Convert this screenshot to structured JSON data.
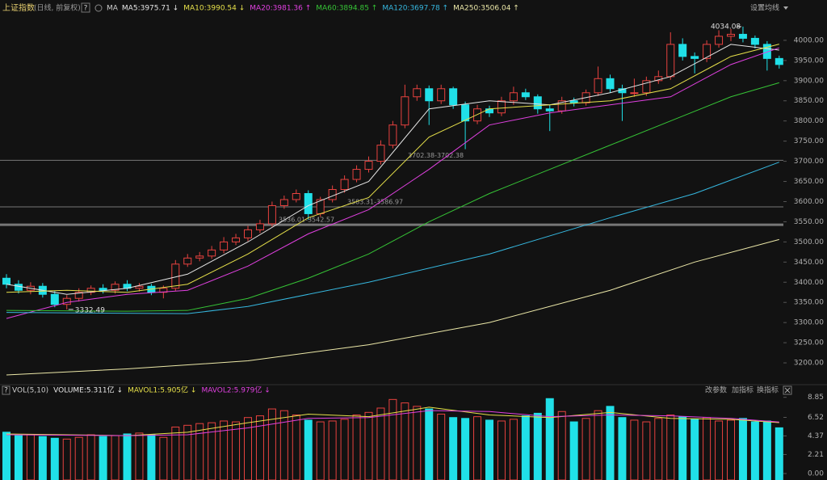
{
  "header": {
    "title": "上证指数",
    "subtitle": "(日线, 前复权)",
    "help": "?",
    "ma_label": "MA",
    "settings": "设置均线"
  },
  "chart_data": [
    {
      "type": "candlestick",
      "up_color": "#e8423f",
      "down_color": "#20e0e8",
      "open": [
        3410,
        3395,
        3380,
        3390,
        3370,
        3345,
        3360,
        3375,
        3385,
        3380,
        3395,
        3385,
        3390,
        3375,
        3385,
        3445,
        3460,
        3465,
        3480,
        3500,
        3510,
        3530,
        3545,
        3590,
        3605,
        3620,
        3570,
        3605,
        3630,
        3655,
        3680,
        3700,
        3740,
        3790,
        3860,
        3880,
        3850,
        3880,
        3840,
        3800,
        3830,
        3820,
        3850,
        3870,
        3860,
        3830,
        3825,
        3850,
        3845,
        3870,
        3905,
        3880,
        3870,
        3870,
        3900,
        3910,
        3990,
        3960,
        3955,
        3990,
        4010,
        4015,
        4005,
        3990,
        3955
      ],
      "close": [
        3395,
        3380,
        3390,
        3370,
        3345,
        3360,
        3375,
        3385,
        3380,
        3395,
        3385,
        3390,
        3375,
        3385,
        3445,
        3460,
        3465,
        3480,
        3500,
        3510,
        3530,
        3545,
        3590,
        3605,
        3620,
        3570,
        3605,
        3630,
        3655,
        3680,
        3700,
        3740,
        3790,
        3860,
        3880,
        3850,
        3880,
        3840,
        3800,
        3830,
        3820,
        3850,
        3870,
        3860,
        3830,
        3825,
        3850,
        3845,
        3870,
        3905,
        3880,
        3870,
        3870,
        3900,
        3910,
        3990,
        3960,
        3955,
        3990,
        4010,
        4015,
        4005,
        3990,
        3955,
        3940
      ],
      "high": [
        3420,
        3405,
        3400,
        3398,
        3378,
        3368,
        3385,
        3392,
        3395,
        3402,
        3405,
        3398,
        3396,
        3392,
        3455,
        3470,
        3475,
        3490,
        3512,
        3520,
        3540,
        3555,
        3600,
        3615,
        3630,
        3628,
        3612,
        3640,
        3665,
        3690,
        3712,
        3752,
        3800,
        3890,
        3890,
        3888,
        3890,
        3885,
        3848,
        3840,
        3838,
        3860,
        3885,
        3880,
        3866,
        3840,
        3860,
        3858,
        3878,
        3935,
        3915,
        3890,
        3905,
        3910,
        3925,
        4020,
        4005,
        3970,
        4000,
        4025,
        4028,
        4034.08,
        4012,
        3998,
        3962
      ],
      "low": [
        3385,
        3372,
        3370,
        3362,
        3338,
        3332.49,
        3352,
        3368,
        3372,
        3372,
        3378,
        3377,
        3368,
        3360,
        3378,
        3438,
        3452,
        3458,
        3472,
        3492,
        3502,
        3522,
        3538,
        3582,
        3598,
        3555,
        3562,
        3598,
        3622,
        3648,
        3672,
        3692,
        3732,
        3782,
        3850,
        3790,
        3842,
        3830,
        3730,
        3792,
        3810,
        3812,
        3840,
        3852,
        3818,
        3775,
        3818,
        3836,
        3838,
        3862,
        3870,
        3800,
        3860,
        3862,
        3892,
        3902,
        3950,
        3918,
        3946,
        3982,
        3998,
        3995,
        3980,
        3925,
        3930
      ],
      "ylim": [
        3158,
        4084
      ],
      "yticks": [
        {
          "value": 3200,
          "label": "3200.00"
        },
        {
          "value": 3250,
          "label": "3250.00"
        },
        {
          "value": 3300,
          "label": "3300.00"
        },
        {
          "value": 3350,
          "label": "3350.00"
        },
        {
          "value": 3400,
          "label": "3400.00"
        },
        {
          "value": 3450,
          "label": "3450.00"
        },
        {
          "value": 3500,
          "label": "3500.00"
        },
        {
          "value": 3550,
          "label": "3550.00"
        },
        {
          "value": 3600,
          "label": "3600.00"
        },
        {
          "value": 3650,
          "label": "3650.00"
        },
        {
          "value": 3700,
          "label": "3700.00"
        },
        {
          "value": 3750,
          "label": "3750.00"
        },
        {
          "value": 3800,
          "label": "3800.00"
        },
        {
          "value": 3850,
          "label": "3850.00"
        },
        {
          "value": 3900,
          "label": "3900.00"
        },
        {
          "value": 3950,
          "label": "3950.00"
        },
        {
          "value": 4000,
          "label": "4000.00"
        }
      ],
      "series": [
        {
          "name": "MA5:3975.71 ↓",
          "color": "#e6e6e6",
          "x": [
            0,
            5,
            10,
            15,
            20,
            25,
            30,
            35,
            40,
            45,
            50,
            55,
            60,
            64
          ],
          "values": [
            3395,
            3370,
            3385,
            3420,
            3500,
            3590,
            3650,
            3830,
            3850,
            3840,
            3870,
            3910,
            3990,
            3975.71
          ]
        },
        {
          "name": "MA10:3990.54 ↓",
          "color": "#e6e04a",
          "x": [
            0,
            5,
            10,
            15,
            20,
            25,
            30,
            35,
            40,
            45,
            50,
            55,
            60,
            64
          ],
          "values": [
            3375,
            3380,
            3375,
            3395,
            3470,
            3560,
            3610,
            3760,
            3830,
            3840,
            3850,
            3880,
            3960,
            3990.54
          ]
        },
        {
          "name": "MA20:3981.36 ↑",
          "color": "#e040e0",
          "x": [
            0,
            5,
            10,
            15,
            20,
            25,
            30,
            35,
            40,
            45,
            50,
            55,
            60,
            64
          ],
          "values": [
            3310,
            3350,
            3370,
            3380,
            3440,
            3520,
            3580,
            3680,
            3790,
            3820,
            3840,
            3860,
            3940,
            3981.36
          ]
        },
        {
          "name": "MA60:3894.85 ↑",
          "color": "#36c436",
          "x": [
            0,
            10,
            15,
            20,
            25,
            30,
            35,
            40,
            45,
            50,
            55,
            60,
            64
          ],
          "values": [
            3330,
            3328,
            3330,
            3360,
            3410,
            3470,
            3550,
            3620,
            3680,
            3740,
            3800,
            3860,
            3894.85
          ]
        },
        {
          "name": "MA120:3697.78 ↑",
          "color": "#36b8e0",
          "x": [
            0,
            15,
            20,
            30,
            40,
            50,
            57,
            64
          ],
          "values": [
            3325,
            3322,
            3340,
            3400,
            3470,
            3560,
            3620,
            3697.78
          ]
        },
        {
          "name": "MA250:3506.04 ↑",
          "color": "#ece8a8",
          "x": [
            0,
            10,
            20,
            30,
            40,
            50,
            57,
            64
          ],
          "values": [
            3170,
            3185,
            3205,
            3245,
            3300,
            3380,
            3450,
            3506.04
          ]
        }
      ],
      "levels": [
        {
          "value": 3702.38,
          "label": "3702.38-3702.38"
        },
        {
          "value": 3586.97,
          "label": "3583.31-3586.97"
        },
        {
          "value": 3542.57,
          "label": "3536.01-3542.57"
        }
      ]
    },
    {
      "type": "bar",
      "title": "VOL(5,10)",
      "legend_label": "VOLUME:5.311亿 ↓",
      "values": [
        4.8,
        4.4,
        4.5,
        4.3,
        4.1,
        4.0,
        4.2,
        4.5,
        4.3,
        4.4,
        4.6,
        4.7,
        4.5,
        4.2,
        5.4,
        5.6,
        5.8,
        5.9,
        6.1,
        6.0,
        6.5,
        6.7,
        7.5,
        7.3,
        6.8,
        6.2,
        6.0,
        6.1,
        6.3,
        6.8,
        7.1,
        7.6,
        8.6,
        8.2,
        7.8,
        7.5,
        6.9,
        6.5,
        6.4,
        6.6,
        6.2,
        6.1,
        6.3,
        6.7,
        7.0,
        8.7,
        7.2,
        6.0,
        6.4,
        7.3,
        7.8,
        6.5,
        6.2,
        6.0,
        6.4,
        6.8,
        6.6,
        6.3,
        6.5,
        6.1,
        6.2,
        6.4,
        6.0,
        6.1,
        5.311
      ],
      "ylim": [
        0,
        9.1
      ],
      "yticks": [
        {
          "value": 0,
          "label": "0.00"
        },
        2.21,
        4.37,
        6.52,
        8.85
      ],
      "series": [
        {
          "name": "MAVOL1:5.905亿 ↓",
          "color": "#e6e04a",
          "x": [
            0,
            10,
            15,
            20,
            25,
            30,
            35,
            40,
            45,
            50,
            55,
            60,
            64
          ],
          "values": [
            4.6,
            4.4,
            4.8,
            5.9,
            6.9,
            6.6,
            7.7,
            6.8,
            6.5,
            7.1,
            6.4,
            6.3,
            5.905
          ]
        },
        {
          "name": "MAVOL2:5.979亿 ↓",
          "color": "#e040e0",
          "x": [
            0,
            10,
            15,
            20,
            25,
            30,
            35,
            40,
            45,
            50,
            55,
            60,
            64
          ],
          "values": [
            4.5,
            4.4,
            4.5,
            5.3,
            6.4,
            6.5,
            7.3,
            7.2,
            6.6,
            6.8,
            6.7,
            6.4,
            5.979
          ]
        }
      ]
    }
  ],
  "toolbar": {
    "items": [
      "改参数",
      "加指标",
      "换指标"
    ],
    "help": "?"
  }
}
